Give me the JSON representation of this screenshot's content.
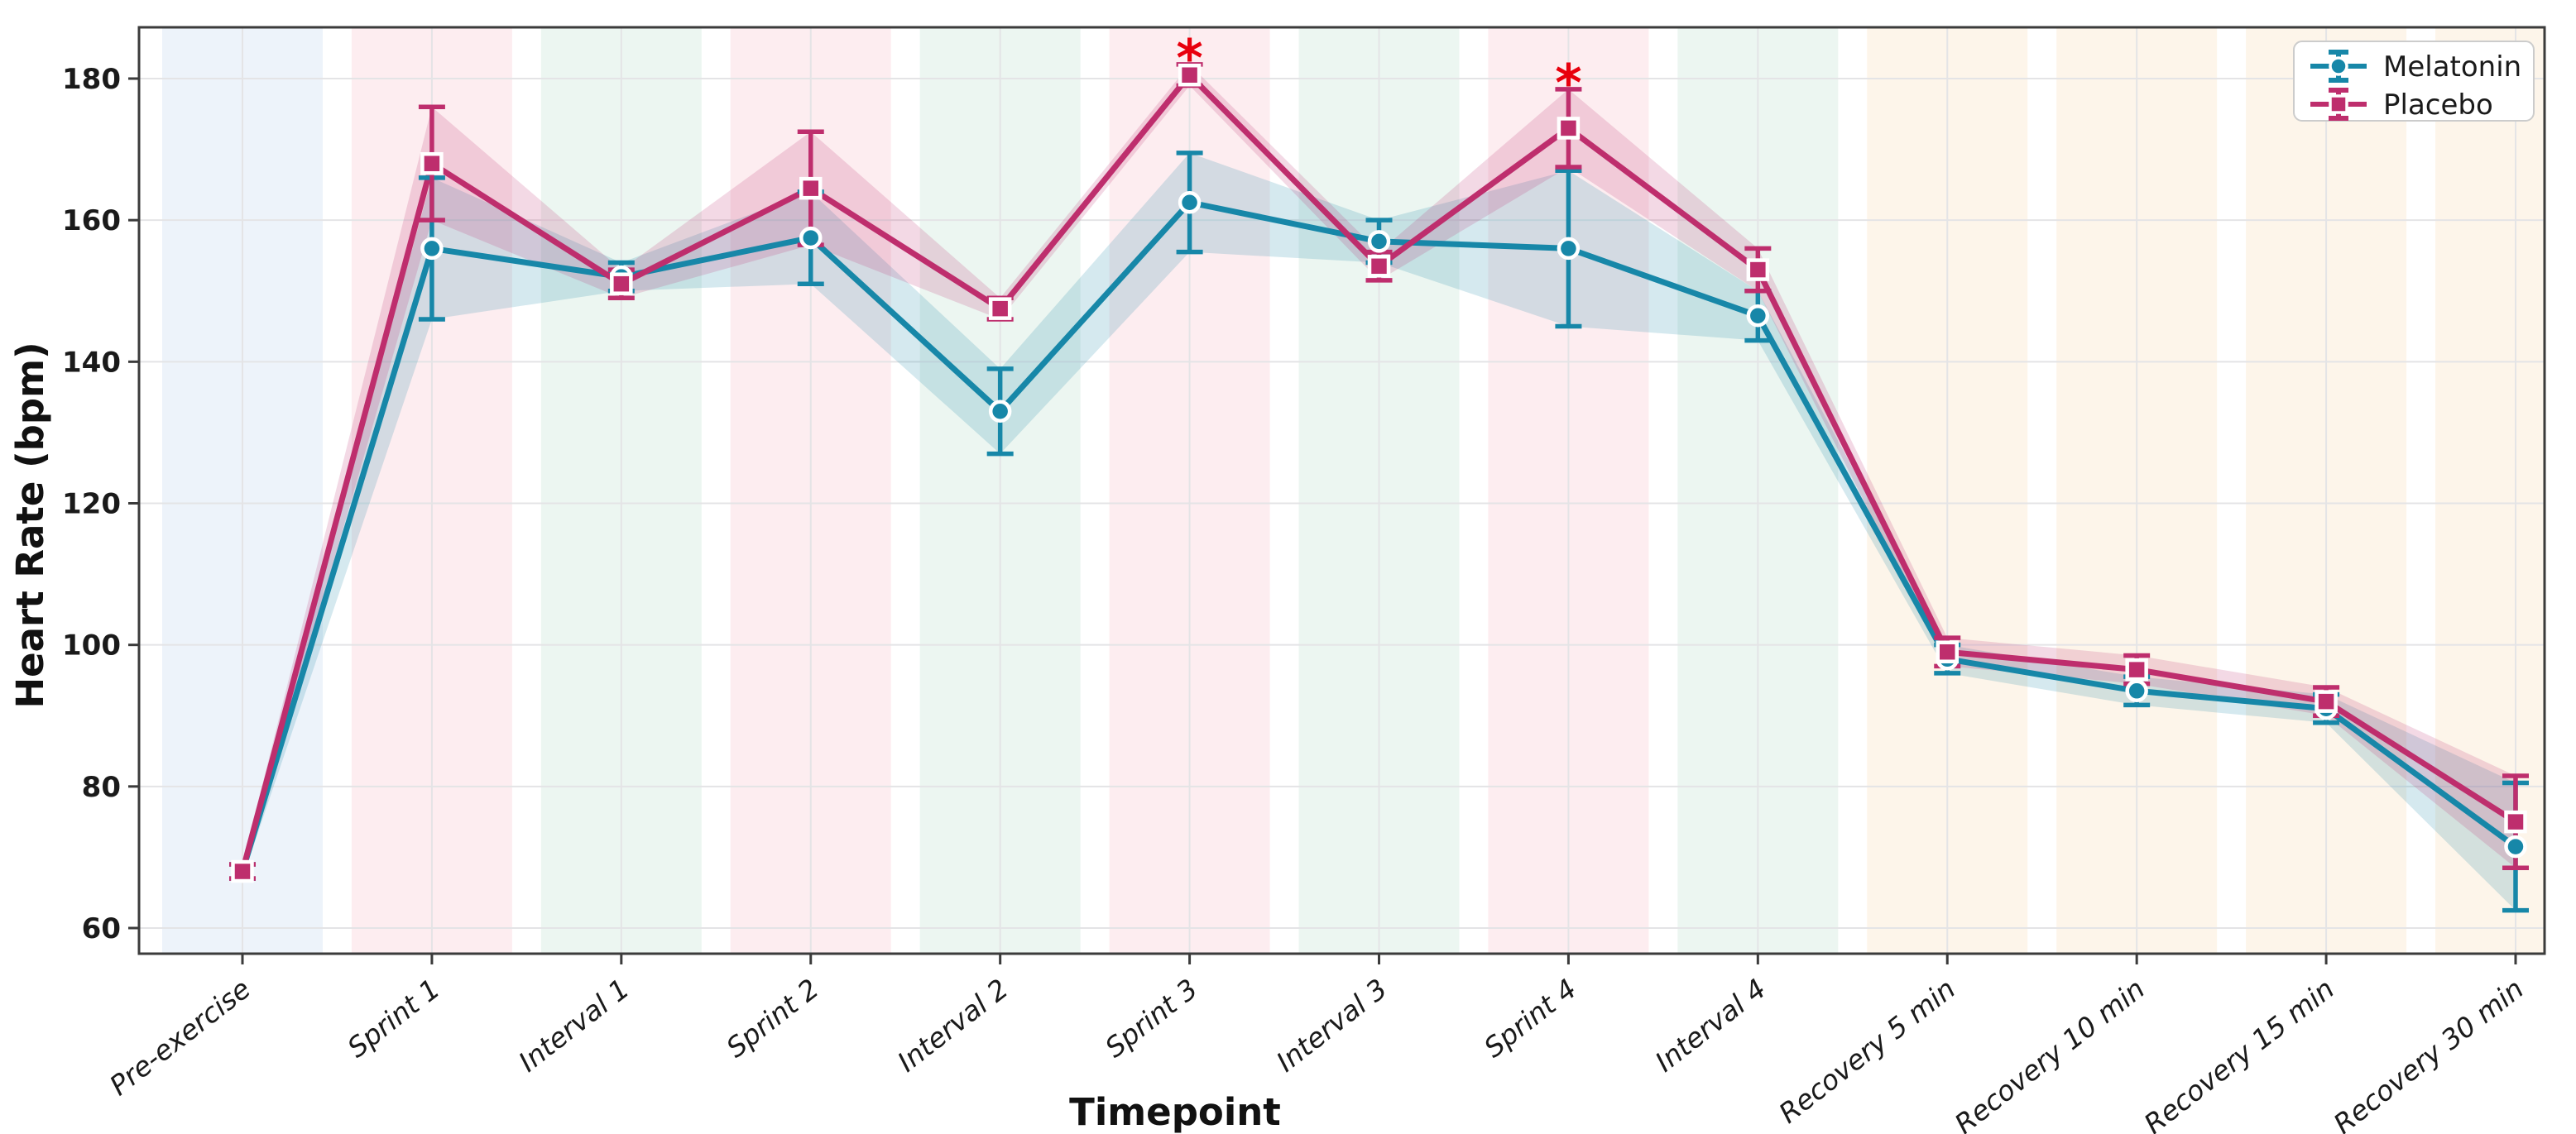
{
  "chart_data": {
    "type": "line",
    "title": "",
    "xlabel": "Timepoint",
    "ylabel": "Heart Rate (bpm)",
    "categories": [
      "Pre-exercise",
      "Sprint 1",
      "Interval 1",
      "Sprint 2",
      "Interval 2",
      "Sprint 3",
      "Interval 3",
      "Sprint 4",
      "Interval 4",
      "Recovery 5 min",
      "Recovery 10 min",
      "Recovery 15 min",
      "Recovery 30 min"
    ],
    "category_phases": [
      "baseline",
      "sprint",
      "interval",
      "sprint",
      "interval",
      "sprint",
      "interval",
      "sprint",
      "interval",
      "recovery",
      "recovery",
      "recovery",
      "recovery"
    ],
    "phase_colors": {
      "baseline": "#edf3fa",
      "sprint": "#fdedf0",
      "interval": "#ecf6f1",
      "recovery": "#fdf5ea"
    },
    "yticks": [
      60,
      80,
      100,
      120,
      140,
      160,
      180
    ],
    "ylim": [
      56.4,
      187.3
    ],
    "grid": true,
    "legend_position": "upper-right",
    "series": [
      {
        "name": "Melatonin",
        "color": "#1787a8",
        "marker": "circle",
        "values": [
          68,
          156,
          152,
          157.5,
          133,
          162.5,
          157,
          156,
          146.5,
          98,
          93.5,
          91,
          71.5
        ],
        "errors": [
          1,
          10,
          2,
          6.5,
          6,
          7,
          3,
          11,
          3.5,
          2,
          2,
          2,
          9
        ]
      },
      {
        "name": "Placebo",
        "color": "#be2e6d",
        "marker": "square",
        "values": [
          68,
          168,
          151,
          164.5,
          147.5,
          180.5,
          153.5,
          173,
          153,
          99,
          96.5,
          92,
          75
        ],
        "errors": [
          1,
          8,
          2,
          8,
          1.5,
          1.5,
          2,
          5.5,
          3,
          2,
          2,
          2,
          6.5
        ]
      }
    ],
    "significance_markers": [
      {
        "symbol": "*",
        "category": "Sprint 3",
        "series": "Placebo",
        "color": "#e8000d"
      },
      {
        "symbol": "*",
        "category": "Sprint 4",
        "series": "Placebo",
        "color": "#e8000d"
      }
    ]
  }
}
